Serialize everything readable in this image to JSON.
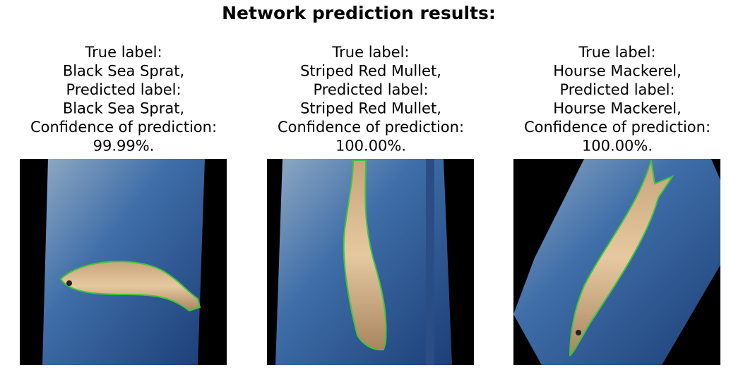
{
  "title": "Network prediction results:",
  "panels": [
    {
      "lines": [
        "True label:",
        "Black Sea Sprat,",
        "Predicted label:",
        "Black Sea Sprat,",
        "Confidence of prediction:",
        "99.99%."
      ]
    },
    {
      "lines": [
        "True label:",
        "Striped Red Mullet,",
        "Predicted label:",
        "Striped Red Mullet,",
        "Confidence of prediction:",
        "100.00%."
      ]
    },
    {
      "lines": [
        "True label:",
        "Hourse Mackerel,",
        "Predicted label:",
        "Hourse Mackerel,",
        "Confidence of prediction:",
        "100.00%."
      ]
    }
  ]
}
